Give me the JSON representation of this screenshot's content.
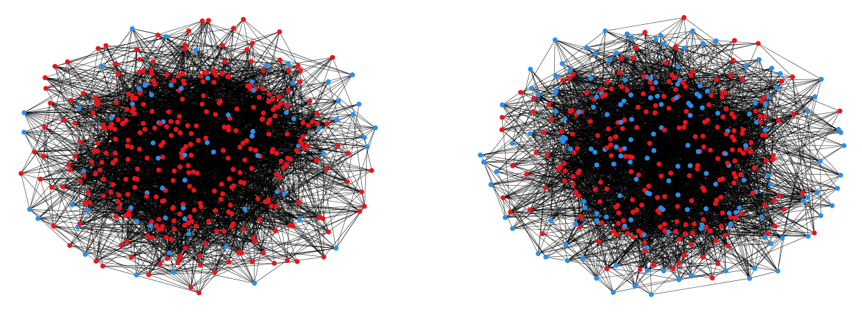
{
  "figure": {
    "panels": [
      {
        "name": "network-left",
        "blue_ratio": 0.18
      },
      {
        "name": "network-right",
        "blue_ratio": 0.45
      }
    ]
  },
  "colors": {
    "node_red": "#e8141c",
    "node_blue": "#2a8ee8",
    "edge": "#000000",
    "background": "#ffffff"
  }
}
